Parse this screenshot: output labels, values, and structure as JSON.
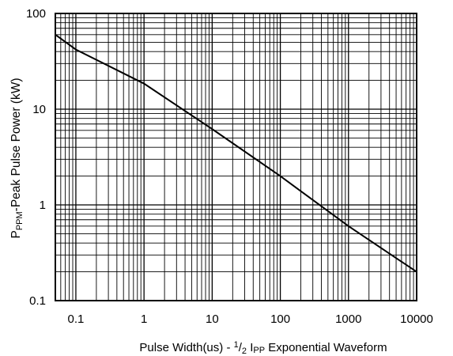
{
  "chart_data": {
    "type": "line",
    "x_scale": "log",
    "y_scale": "log",
    "xlim": [
      0.05,
      10000
    ],
    "ylim": [
      0.1,
      100
    ],
    "grid": true,
    "x_tick_labels": [
      {
        "value": 0.1,
        "label": "0.1"
      },
      {
        "value": 1,
        "label": "1"
      },
      {
        "value": 10,
        "label": "10"
      },
      {
        "value": 100,
        "label": "100"
      },
      {
        "value": 1000,
        "label": "1000"
      },
      {
        "value": 10000,
        "label": "10000"
      }
    ],
    "y_tick_labels": [
      {
        "value": 0.1,
        "label": "0.1"
      },
      {
        "value": 1,
        "label": "1"
      },
      {
        "value": 10,
        "label": "10"
      },
      {
        "value": 100,
        "label": "100"
      }
    ],
    "series": [
      {
        "color": "#000000",
        "x": [
          0.05,
          0.1,
          1,
          10,
          100,
          1000,
          10000
        ],
        "y": [
          60,
          42,
          18.5,
          6.2,
          2.0,
          0.6,
          0.2
        ]
      }
    ],
    "xlabel": {
      "part1": "Pulse Width(us) - ",
      "sup": "1",
      "slash": "/",
      "sub2": "2",
      "part2": " I",
      "sub": "PP",
      "part3": " Exponential Waveform"
    },
    "ylabel": {
      "part1": "P",
      "sub": "PPM",
      "part2": "-Peak Pulse Power (kW)"
    }
  }
}
